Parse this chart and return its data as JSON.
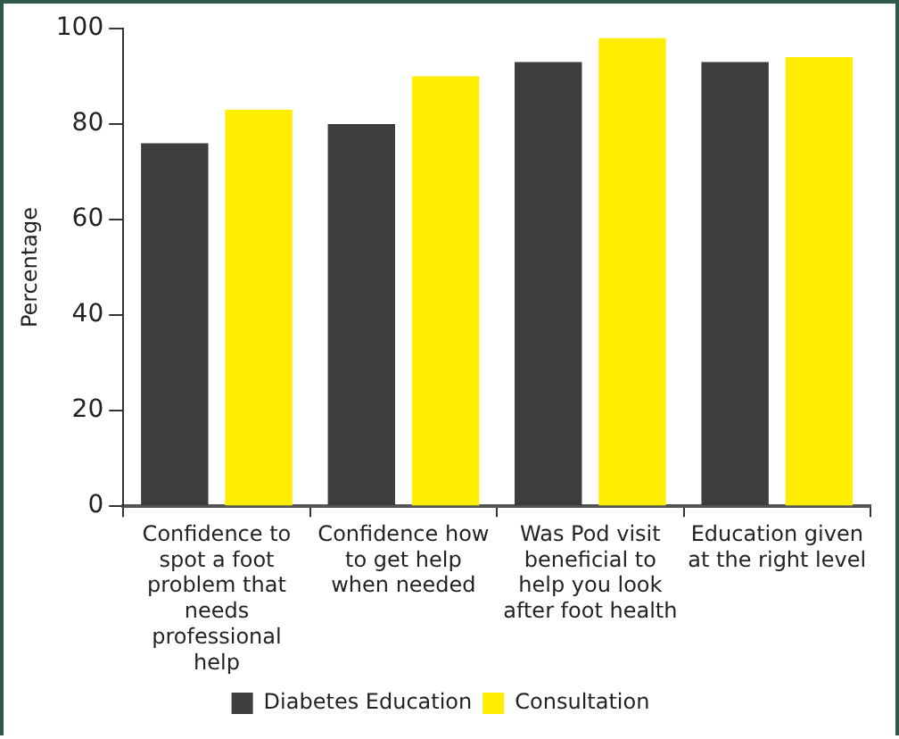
{
  "chart_data": {
    "type": "bar",
    "ylabel": "Percentage",
    "categories": [
      "Confidence to spot a foot problem that needs professional help",
      "Confidence how to get help when needed",
      "Was Pod visit beneficial to help you look after foot health",
      "Education given at the right level"
    ],
    "series": [
      {
        "name": "Diabetes Education",
        "color": "#3d3d3d",
        "values": [
          76,
          80,
          93,
          93
        ]
      },
      {
        "name": "Consultation",
        "color": "#ffee00",
        "values": [
          83,
          90,
          98,
          94
        ]
      }
    ],
    "ylim": [
      0,
      100
    ],
    "yticks": [
      0,
      20,
      40,
      60,
      80,
      100
    ],
    "grid": false,
    "legend": "bottom"
  }
}
